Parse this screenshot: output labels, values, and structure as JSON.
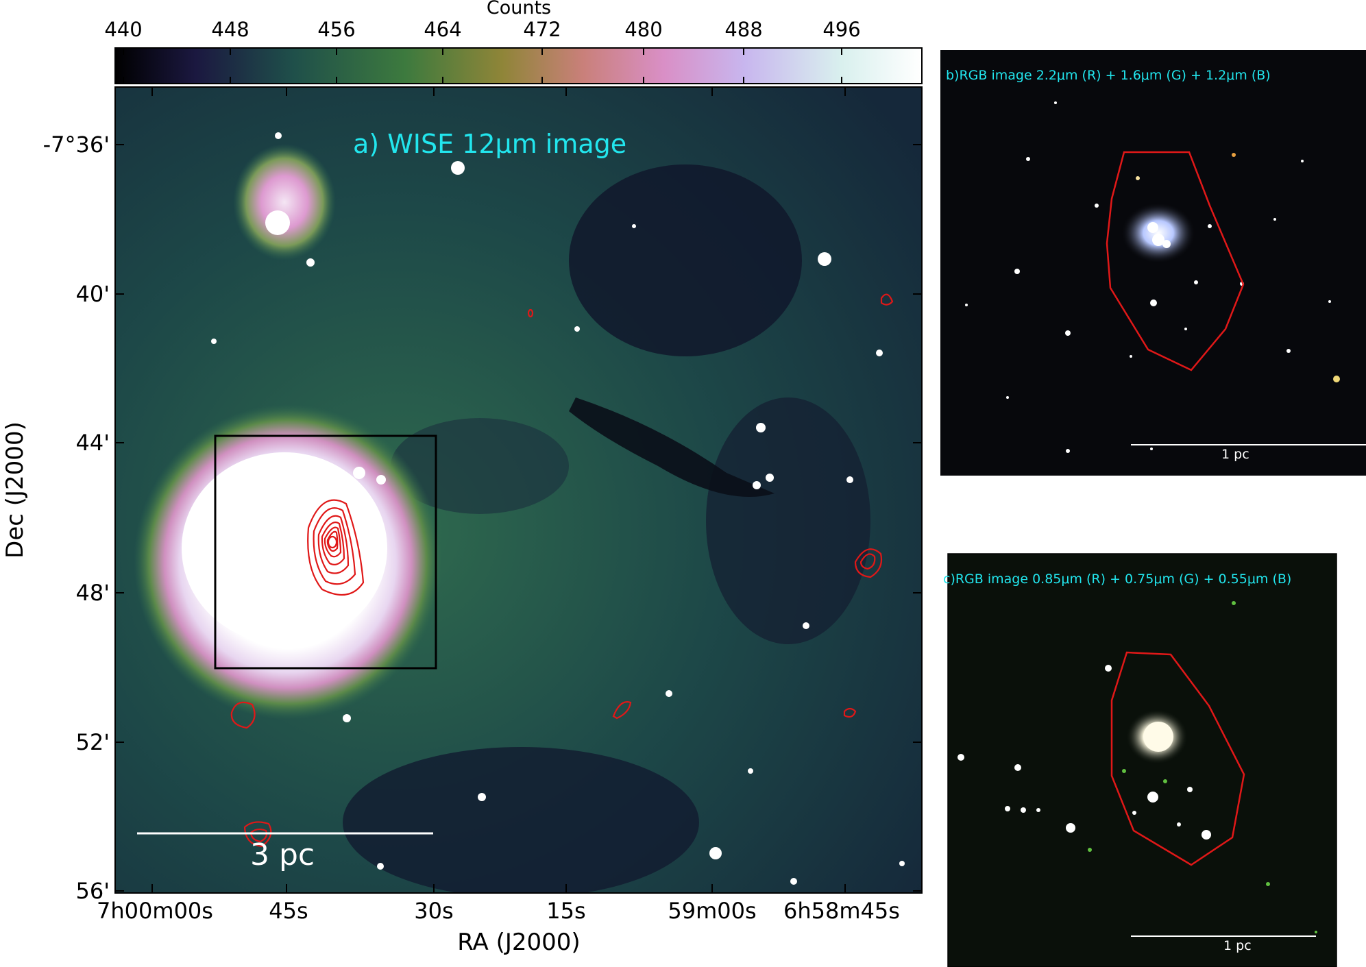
{
  "colorbar": {
    "title": "Counts",
    "ticks": [
      "440",
      "448",
      "456",
      "464",
      "472",
      "480",
      "488",
      "496"
    ],
    "gradient_colors": [
      "#000000",
      "#1b1840",
      "#1f4f4a",
      "#3d7a3e",
      "#8f8538",
      "#c9807a",
      "#d98fc6",
      "#c8b6ee",
      "#d9f0ee",
      "#ffffff"
    ]
  },
  "panel_a": {
    "title": "a) WISE 12μm image",
    "scale_bar_label": "3 pc",
    "xlabel": "RA (J2000)",
    "ylabel": "Dec (J2000)",
    "ra_ticks": [
      "7h00m00s",
      "45s",
      "30s",
      "15s",
      "59m00s",
      "6h58m45s"
    ],
    "dec_ticks": [
      "-7°36'",
      "40'",
      "44'",
      "48'",
      "52'",
      "56'"
    ]
  },
  "panel_b": {
    "title": "b)RGB image 2.2μm (R) + 1.6μm (G) + 1.2μm (B)",
    "scale_bar_label": "1 pc"
  },
  "panel_c": {
    "title": "c)RGB image 0.85μm (R) + 0.75μm (G) + 0.55μm (B)",
    "scale_bar_label": "1 pc"
  },
  "colors": {
    "contour": "#e01818",
    "annotation": "#22e6ee",
    "box": "#000000"
  }
}
